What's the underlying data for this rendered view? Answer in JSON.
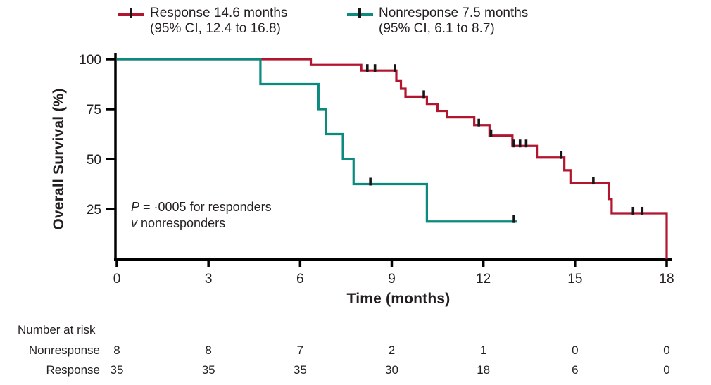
{
  "figure": {
    "background": "#ffffff",
    "text_color": "#231f20",
    "axis_color": "#000000"
  },
  "legend": {
    "series": [
      {
        "label": "Response 14.6 months",
        "ci": "(95% CI, 12.4 to 16.8)",
        "color": "#b2152f"
      },
      {
        "label": "Nonresponse 7.5 months",
        "ci": "(95% CI, 6.1 to 8.7)",
        "color": "#0c8a7d"
      }
    ]
  },
  "annotation": {
    "p_italic": "P",
    "p_rest": " = ·0005 for responders",
    "v_italic": "v",
    "v_rest": " nonresponders"
  },
  "axes": {
    "ylabel": "Overall Survival (%)",
    "xlabel": "Time (months)",
    "yticks": [
      100,
      75,
      50,
      25
    ],
    "xticks": [
      0,
      3,
      6,
      9,
      12,
      15,
      18
    ]
  },
  "risk_table": {
    "title": "Number at risk",
    "rows": [
      {
        "label": "Nonresponse",
        "values": [
          "8",
          "8",
          "7",
          "2",
          "1",
          "0",
          "0"
        ]
      },
      {
        "label": "Response",
        "values": [
          "35",
          "35",
          "35",
          "30",
          "18",
          "6",
          "0"
        ]
      }
    ]
  },
  "chart_data": {
    "type": "line",
    "subtype": "kaplan-meier-step",
    "title": "",
    "xlabel": "Time (months)",
    "ylabel": "Overall Survival (%)",
    "xlim": [
      0,
      18
    ],
    "ylim": [
      0,
      100
    ],
    "xticks": [
      0,
      3,
      6,
      9,
      12,
      15,
      18
    ],
    "yticks": [
      25,
      50,
      75,
      100
    ],
    "grid": false,
    "legend_position": "top",
    "p_value_note": "P = .0005 for responders v nonresponders",
    "series": [
      {
        "name": "Response",
        "median_os_months": 14.6,
        "ci95": [
          12.4,
          16.8
        ],
        "color": "#b2152f",
        "steps": [
          [
            0,
            100
          ],
          [
            6.35,
            97.1
          ],
          [
            8.0,
            94.3
          ],
          [
            9.15,
            89.3
          ],
          [
            9.3,
            85.2
          ],
          [
            9.45,
            81.2
          ],
          [
            10.15,
            77.6
          ],
          [
            10.5,
            74.1
          ],
          [
            10.8,
            70.9
          ],
          [
            11.7,
            67.0
          ],
          [
            12.2,
            61.7
          ],
          [
            12.95,
            56.6
          ],
          [
            13.75,
            50.8
          ],
          [
            14.65,
            44.4
          ],
          [
            14.85,
            38.0
          ],
          [
            16.1,
            30.0
          ],
          [
            16.2,
            22.9
          ],
          [
            18,
            0
          ]
        ],
        "end_time": 18,
        "censor_marks": [
          [
            8.2,
            94.3
          ],
          [
            8.45,
            94.3
          ],
          [
            9.1,
            94.3
          ],
          [
            10.05,
            81.2
          ],
          [
            11.85,
            67.0
          ],
          [
            12.25,
            61.7
          ],
          [
            13.0,
            56.6
          ],
          [
            13.2,
            56.6
          ],
          [
            13.4,
            56.6
          ],
          [
            14.55,
            50.8
          ],
          [
            15.6,
            38.0
          ],
          [
            16.9,
            22.9
          ],
          [
            17.2,
            22.9
          ]
        ],
        "number_at_risk": [
          35,
          35,
          35,
          30,
          18,
          6,
          0
        ]
      },
      {
        "name": "Nonresponse",
        "median_os_months": 7.5,
        "ci95": [
          6.1,
          8.7
        ],
        "color": "#0c8a7d",
        "steps": [
          [
            0,
            100
          ],
          [
            4.7,
            87.5
          ],
          [
            6.6,
            75.0
          ],
          [
            6.85,
            62.5
          ],
          [
            7.4,
            50.0
          ],
          [
            7.75,
            37.5
          ],
          [
            10.15,
            18.75
          ]
        ],
        "end_time": 13.1,
        "censor_marks": [
          [
            8.3,
            37.5
          ],
          [
            13.0,
            18.75
          ]
        ],
        "number_at_risk": [
          8,
          8,
          7,
          2,
          1,
          0,
          0
        ]
      }
    ]
  }
}
